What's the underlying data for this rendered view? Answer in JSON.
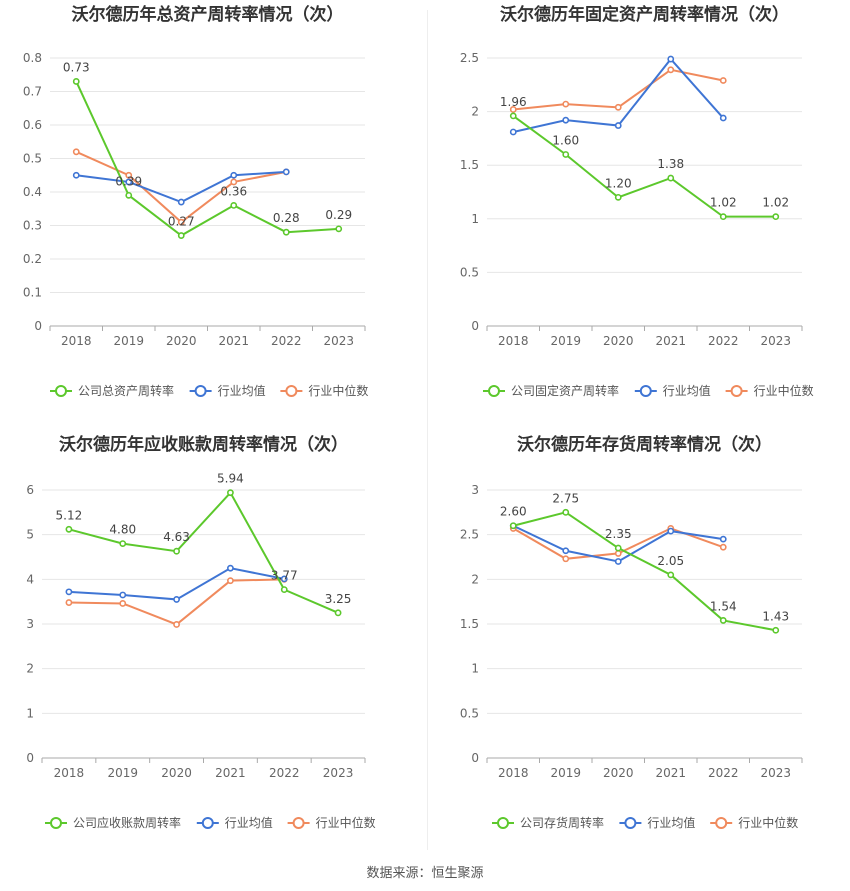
{
  "colors": {
    "company": "#5cc82c",
    "avg": "#3f75d4",
    "median": "#f08a5d"
  },
  "source": "数据来源：恒生聚源",
  "legend": {
    "avg": "行业均值",
    "median": "行业中位数"
  },
  "chart_data": [
    {
      "type": "line",
      "title": "沃尔德历年总资产周转率情况（次）",
      "x": [
        "2018",
        "2019",
        "2020",
        "2021",
        "2022",
        "2023"
      ],
      "ylim": [
        0,
        0.8
      ],
      "yticks": [
        "0",
        "0.1",
        "0.2",
        "0.3",
        "0.4",
        "0.5",
        "0.6",
        "0.7",
        "0.8"
      ],
      "series": [
        {
          "name": "公司总资产周转率",
          "key": "company",
          "values": [
            0.73,
            0.39,
            0.27,
            0.36,
            0.28,
            0.29
          ],
          "labels": [
            "0.73",
            "0.39",
            "0.27",
            "0.36",
            "0.28",
            "0.29"
          ]
        },
        {
          "name": "行业均值",
          "key": "avg",
          "values": [
            0.45,
            0.43,
            0.37,
            0.45,
            0.46,
            null
          ]
        },
        {
          "name": "行业中位数",
          "key": "median",
          "values": [
            0.52,
            0.45,
            0.31,
            0.43,
            0.46,
            null
          ]
        }
      ]
    },
    {
      "type": "line",
      "title": "沃尔德历年固定资产周转率情况（次）",
      "x": [
        "2018",
        "2019",
        "2020",
        "2021",
        "2022",
        "2023"
      ],
      "ylim": [
        0,
        2.5
      ],
      "yticks": [
        "0",
        "0.5",
        "1",
        "1.5",
        "2",
        "2.5"
      ],
      "series": [
        {
          "name": "公司固定资产周转率",
          "key": "company",
          "values": [
            1.96,
            1.6,
            1.2,
            1.38,
            1.02,
            1.02
          ],
          "labels": [
            "1.96",
            "1.60",
            "1.20",
            "1.38",
            "1.02",
            "1.02"
          ]
        },
        {
          "name": "行业均值",
          "key": "avg",
          "values": [
            1.81,
            1.92,
            1.87,
            2.49,
            1.94,
            null
          ]
        },
        {
          "name": "行业中位数",
          "key": "median",
          "values": [
            2.02,
            2.07,
            2.04,
            2.39,
            2.29,
            null
          ]
        }
      ]
    },
    {
      "type": "line",
      "title": "沃尔德历年应收账款周转率情况（次）",
      "x": [
        "2018",
        "2019",
        "2020",
        "2021",
        "2022",
        "2023"
      ],
      "ylim": [
        0,
        6
      ],
      "yticks": [
        "0",
        "1",
        "2",
        "3",
        "4",
        "5",
        "6"
      ],
      "series": [
        {
          "name": "公司应收账款周转率",
          "key": "company",
          "values": [
            5.12,
            4.8,
            4.63,
            5.94,
            3.77,
            3.25
          ],
          "labels": [
            "5.12",
            "4.80",
            "4.63",
            "5.94",
            "3.77",
            "3.25"
          ]
        },
        {
          "name": "行业均值",
          "key": "avg",
          "values": [
            3.72,
            3.65,
            3.55,
            4.25,
            4.01,
            null
          ]
        },
        {
          "name": "行业中位数",
          "key": "median",
          "values": [
            3.48,
            3.46,
            2.99,
            3.97,
            4.0,
            null
          ]
        }
      ]
    },
    {
      "type": "line",
      "title": "沃尔德历年存货周转率情况（次）",
      "x": [
        "2018",
        "2019",
        "2020",
        "2021",
        "2022",
        "2023"
      ],
      "ylim": [
        0,
        3
      ],
      "yticks": [
        "0",
        "0.5",
        "1",
        "1.5",
        "2",
        "2.5",
        "3"
      ],
      "series": [
        {
          "name": "公司存货周转率",
          "key": "company",
          "values": [
            2.6,
            2.75,
            2.35,
            2.05,
            1.54,
            1.43
          ],
          "labels": [
            "2.60",
            "2.75",
            "2.35",
            "2.05",
            "1.54",
            "1.43"
          ]
        },
        {
          "name": "行业均值",
          "key": "avg",
          "values": [
            2.6,
            2.32,
            2.2,
            2.54,
            2.45,
            null
          ]
        },
        {
          "name": "行业中位数",
          "key": "median",
          "values": [
            2.57,
            2.23,
            2.29,
            2.57,
            2.36,
            null
          ]
        }
      ]
    }
  ]
}
